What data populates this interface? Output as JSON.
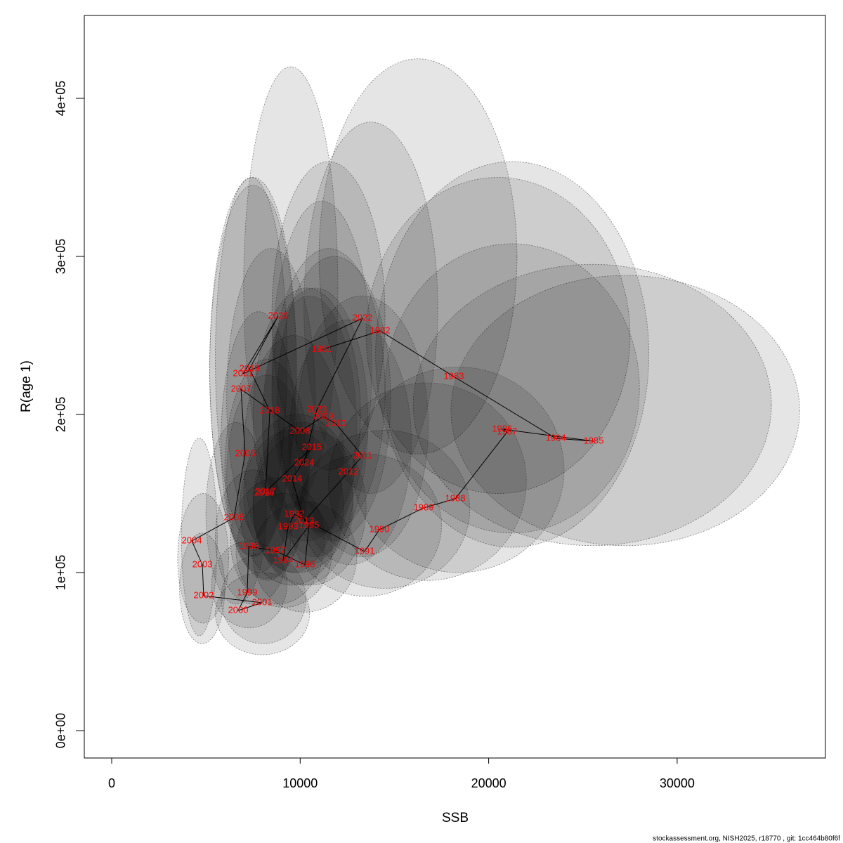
{
  "chart_data": {
    "type": "scatter",
    "x_label": "SSB",
    "y_label": "R(age 1)",
    "footer": "stockassessment.org, NISH2025, r18770 , git: 1cc464b80f6f",
    "xlim": [
      -1454,
      37868
    ],
    "ylim": [
      -17333,
      452444
    ],
    "xticks": [
      0,
      10000,
      20000,
      30000
    ],
    "yticks": [
      {
        "value": 0,
        "label": "0e+00"
      },
      {
        "value": 100000,
        "label": "1e+05"
      },
      {
        "value": 200000,
        "label": "2e+05"
      },
      {
        "value": 300000,
        "label": "3e+05"
      },
      {
        "value": 400000,
        "label": "4e+05"
      }
    ],
    "label_color": "#ff0000",
    "line_color": "#000000",
    "ellipse_color": "#000000",
    "point_labels": [
      "1981",
      "1982",
      "1983",
      "1984",
      "1985",
      "1986",
      "1987",
      "1988",
      "1989",
      "1990",
      "1991",
      "1992",
      "1993",
      "1994",
      "1995",
      "1996",
      "1997",
      "1998",
      "1999",
      "2000",
      "2001",
      "2002",
      "2003",
      "2004",
      "2005",
      "2006",
      "2007",
      "2008",
      "2009",
      "2010",
      "2011",
      "2012",
      "2013",
      "2014",
      "2015",
      "2016",
      "2017",
      "2018",
      "2019",
      "2020",
      "2021",
      "2022",
      "2023",
      "2024"
    ],
    "x": [
      11150,
      14240,
      18150,
      23560,
      25570,
      20720,
      20980,
      18230,
      16550,
      14200,
      13420,
      9690,
      9360,
      9090,
      10470,
      10250,
      8680,
      7270,
      7190,
      6710,
      7980,
      4880,
      4810,
      4250,
      6490,
      7080,
      6860,
      9990,
      11220,
      11890,
      13310,
      12560,
      10210,
      9580,
      10620,
      8090,
      8160,
      8390,
      7310,
      8830,
      6970,
      13310,
      10880,
      10210
    ],
    "y": [
      241000,
      252900,
      224000,
      184900,
      183100,
      190700,
      188900,
      146700,
      140900,
      127100,
      113300,
      136900,
      128900,
      107600,
      129800,
      104900,
      113800,
      116400,
      87100,
      76000,
      80900,
      85300,
      104900,
      120000,
      134700,
      175100,
      216000,
      189300,
      198700,
      194200,
      173800,
      163600,
      132400,
      159100,
      179100,
      150200,
      151100,
      202200,
      228900,
      262200,
      225800,
      260900,
      203100,
      169300
    ],
    "ellipse": {
      "x_low": [
        8500,
        11000,
        13500,
        16000,
        18000,
        14000,
        14500,
        12800,
        11500,
        10000,
        9500,
        7000,
        6800,
        6600,
        7500,
        7500,
        6300,
        5500,
        5300,
        5500,
        5800,
        3600,
        3500,
        3700,
        5000,
        5800,
        5500,
        7500,
        8500,
        8800,
        9800,
        9400,
        7500,
        7000,
        8000,
        6000,
        6100,
        6100,
        5200,
        7000,
        5200,
        10200,
        8500,
        8000
      ],
      "x_high": [
        14500,
        21500,
        27500,
        35000,
        36500,
        28500,
        28000,
        24000,
        22000,
        19000,
        17500,
        12800,
        12300,
        11700,
        13500,
        13000,
        11300,
        9500,
        9300,
        10500,
        10300,
        6000,
        6200,
        5600,
        8200,
        9800,
        9300,
        13200,
        14500,
        14800,
        16800,
        15900,
        12800,
        12300,
        13600,
        10500,
        10400,
        10800,
        9800,
        12000,
        9800,
        17300,
        13800,
        13000
      ],
      "y_low": [
        165000,
        175000,
        150000,
        117000,
        117000,
        116000,
        125000,
        100000,
        95000,
        90000,
        85000,
        100000,
        92000,
        78000,
        92000,
        75000,
        80000,
        80000,
        65000,
        48000,
        55000,
        55000,
        68000,
        60000,
        80000,
        100000,
        120000,
        120000,
        125000,
        120000,
        110000,
        105000,
        92000,
        100000,
        110000,
        95000,
        96000,
        115000,
        110000,
        140000,
        110000,
        150000,
        125000,
        105000
      ],
      "y_high": [
        360000,
        425000,
        350000,
        295000,
        288000,
        360000,
        308000,
        230000,
        220000,
        190000,
        175000,
        200000,
        190000,
        150000,
        190000,
        145000,
        160000,
        165000,
        120000,
        100000,
        112000,
        125000,
        150000,
        185000,
        195000,
        265000,
        350000,
        280000,
        305000,
        300000,
        275000,
        260000,
        195000,
        250000,
        280000,
        235000,
        225000,
        305000,
        350000,
        420000,
        345000,
        385000,
        335000,
        275000
      ]
    }
  }
}
